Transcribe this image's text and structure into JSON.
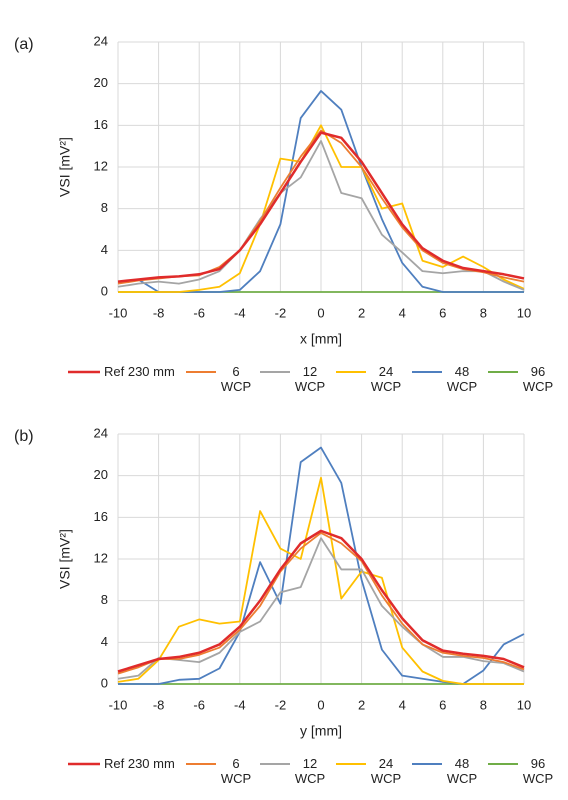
{
  "chart_data": [
    {
      "type": "line",
      "label": "(a)",
      "xlabel": "x [mm]",
      "ylabel": "VSI [mV²]",
      "x": [
        -10,
        -9,
        -8,
        -7,
        -6,
        -5,
        -4,
        -3,
        -2,
        -1,
        0,
        1,
        2,
        3,
        4,
        5,
        6,
        7,
        8,
        9,
        10
      ],
      "xlim": [
        -10,
        10
      ],
      "xticks": [
        -10,
        -8,
        -6,
        -4,
        -2,
        0,
        2,
        4,
        6,
        8,
        10
      ],
      "ylim": [
        0,
        24
      ],
      "yticks": [
        0,
        4,
        8,
        12,
        16,
        20,
        24
      ],
      "grid": true,
      "series": [
        {
          "name": "Ref 230 mm",
          "color": "#e02b2b",
          "values": [
            1.0,
            1.2,
            1.4,
            1.5,
            1.7,
            2.2,
            4.0,
            6.5,
            9.5,
            12.5,
            15.3,
            14.8,
            12.5,
            9.5,
            6.5,
            4.2,
            3.0,
            2.3,
            2.0,
            1.7,
            1.3
          ]
        },
        {
          "name": "6 WCP",
          "color": "#ed7d31",
          "values": [
            0.8,
            1.1,
            1.3,
            1.5,
            1.6,
            2.4,
            4.0,
            6.8,
            10.0,
            13.0,
            15.5,
            14.3,
            12.0,
            9.0,
            6.2,
            4.0,
            2.8,
            2.2,
            1.9,
            1.4,
            1.0
          ]
        },
        {
          "name": "12 WCP",
          "color": "#a5a5a5",
          "values": [
            0.5,
            0.8,
            1.0,
            0.8,
            1.2,
            2.0,
            4.0,
            7.0,
            9.5,
            11.0,
            14.5,
            9.5,
            9.0,
            5.5,
            3.8,
            2.0,
            1.8,
            2.0,
            2.0,
            1.0,
            0.2
          ]
        },
        {
          "name": "24 WCP",
          "color": "#ffc000",
          "values": [
            0,
            0,
            0,
            0,
            0.2,
            0.5,
            1.8,
            6.5,
            12.8,
            12.5,
            16.0,
            12.0,
            12.0,
            8.0,
            8.5,
            3.0,
            2.4,
            3.4,
            2.4,
            1.2,
            0.3
          ]
        },
        {
          "name": "48 WCP",
          "color": "#4f7fbf",
          "values": [
            1.0,
            1.2,
            0,
            0,
            0,
            0,
            0.2,
            2.0,
            6.5,
            16.7,
            19.3,
            17.5,
            12.0,
            7.0,
            2.8,
            0.5,
            0,
            0,
            0,
            0,
            0
          ]
        },
        {
          "name": "96 WCP",
          "color": "#70ad47",
          "values": [
            0,
            0,
            0,
            0,
            0,
            0,
            0,
            0,
            0,
            0,
            0,
            0,
            0,
            0,
            0,
            0,
            0,
            0,
            0,
            0,
            0
          ]
        }
      ]
    },
    {
      "type": "line",
      "label": "(b)",
      "xlabel": "y [mm]",
      "ylabel": "VSI [mV²]",
      "x": [
        -10,
        -9,
        -8,
        -7,
        -6,
        -5,
        -4,
        -3,
        -2,
        -1,
        0,
        1,
        2,
        3,
        4,
        5,
        6,
        7,
        8,
        9,
        10
      ],
      "xlim": [
        -10,
        10
      ],
      "xticks": [
        -10,
        -8,
        -6,
        -4,
        -2,
        0,
        2,
        4,
        6,
        8,
        10
      ],
      "ylim": [
        0,
        24
      ],
      "yticks": [
        0,
        4,
        8,
        12,
        16,
        20,
        24
      ],
      "grid": true,
      "series": [
        {
          "name": "Ref 230 mm",
          "color": "#e02b2b",
          "values": [
            1.2,
            1.8,
            2.4,
            2.6,
            3.0,
            3.8,
            5.5,
            8.0,
            11.0,
            13.5,
            14.7,
            14.0,
            12.0,
            9.0,
            6.3,
            4.2,
            3.2,
            2.9,
            2.7,
            2.4,
            1.6
          ]
        },
        {
          "name": "6 WCP",
          "color": "#ed7d31",
          "values": [
            1.0,
            1.6,
            2.4,
            2.4,
            2.8,
            3.5,
            5.2,
            7.5,
            10.8,
            13.0,
            14.5,
            13.5,
            11.8,
            8.5,
            5.8,
            3.8,
            3.0,
            2.7,
            2.5,
            2.1,
            1.4
          ]
        },
        {
          "name": "12 WCP",
          "color": "#a5a5a5",
          "values": [
            0.5,
            0.8,
            2.5,
            2.3,
            2.1,
            3.0,
            5.0,
            6.0,
            8.8,
            9.3,
            14.0,
            11.0,
            11.0,
            7.5,
            5.5,
            3.8,
            2.6,
            2.6,
            2.2,
            2.0,
            1.2
          ]
        },
        {
          "name": "24 WCP",
          "color": "#ffc000",
          "values": [
            0.2,
            0.5,
            2.3,
            5.5,
            6.2,
            5.8,
            6.0,
            16.6,
            13.0,
            12.0,
            19.8,
            8.2,
            10.8,
            10.2,
            3.5,
            1.2,
            0.3,
            0,
            0,
            0,
            0
          ]
        },
        {
          "name": "48 WCP",
          "color": "#4f7fbf",
          "values": [
            0,
            0,
            0,
            0.4,
            0.5,
            1.5,
            5.0,
            11.7,
            7.7,
            21.3,
            22.7,
            19.3,
            10.0,
            3.3,
            0.8,
            0.5,
            0.2,
            0,
            1.3,
            3.8,
            4.8
          ]
        },
        {
          "name": "96 WCP",
          "color": "#70ad47",
          "values": [
            0,
            0,
            0,
            0,
            0,
            0,
            0,
            0,
            0,
            0,
            0,
            0,
            0,
            0,
            0,
            0,
            0,
            0,
            0,
            0,
            0
          ]
        }
      ]
    }
  ]
}
